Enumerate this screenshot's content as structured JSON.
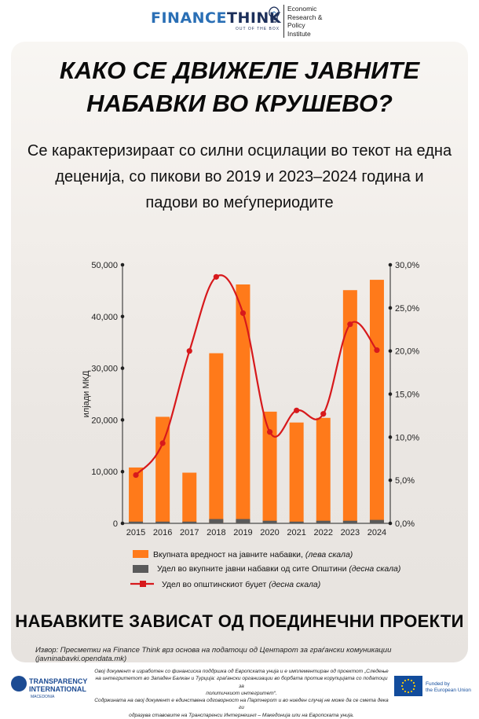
{
  "header": {
    "brand_main": "FINANCE",
    "brand_accent": "THINK",
    "brand_tagline": "OUT OF THE BOX",
    "institute_lines": [
      "Economic",
      "Research &",
      "Policy",
      "Institute"
    ]
  },
  "title_lines": [
    "КАКО СЕ ДВИЖЕЛЕ ЈАВНИТЕ",
    "НАБАВКИ ВО КРУШЕВО?"
  ],
  "subtitle_lines": [
    "Се карактеризираат со силни осцилации во текот на една",
    "деценија, со пикови во 2019 и 2023–2024 година и",
    "падови во меѓупериодите"
  ],
  "colors": {
    "orange": "#ff7a1a",
    "gray": "#5a5a5a",
    "red": "#d7191c",
    "brand_blue": "#2a6fb5"
  },
  "chart_data": {
    "type": "bar",
    "categories": [
      "2015",
      "2016",
      "2017",
      "2018",
      "2019",
      "2020",
      "2021",
      "2022",
      "2023",
      "2024"
    ],
    "series": [
      {
        "name": "Вкупната вредност на јавните набавки, (лева скала)",
        "type": "bar",
        "axis": "left",
        "values": [
          10800,
          20600,
          9800,
          32900,
          46200,
          21600,
          19500,
          20400,
          45100,
          47100
        ]
      },
      {
        "name": "Удел во вкупните јавни набавки од сите Општини (десна скала)",
        "type": "bar",
        "axis": "right",
        "values": [
          0.2,
          0.2,
          0.2,
          0.5,
          0.5,
          0.3,
          0.2,
          0.3,
          0.3,
          0.4
        ]
      },
      {
        "name": "Удел во општинскиот буџет (десна скала)",
        "type": "line",
        "axis": "right",
        "values": [
          5.6,
          9.3,
          20.0,
          28.6,
          24.4,
          10.6,
          13.1,
          12.7,
          23.1,
          20.1
        ]
      }
    ],
    "left_axis": {
      "label": "илјади МКД",
      "ticks": [
        "0",
        "10,000",
        "20,000",
        "30,000",
        "40,000",
        "50,000"
      ],
      "range": [
        0,
        50000
      ]
    },
    "right_axis": {
      "ticks": [
        "0,0%",
        "5,0%",
        "10,0%",
        "15,0%",
        "20,0%",
        "25,0%",
        "30,0%"
      ],
      "range": [
        0,
        30
      ]
    },
    "legend_placement": "bottom",
    "legend": [
      {
        "text": "Вкупната вредност на јавните набавки, ",
        "italic": "(лева скала)"
      },
      {
        "text": "Удел во вкупните јавни набавки од сите Општини ",
        "italic": "(десна скала)"
      },
      {
        "text": "Удел во општинскиот буџет ",
        "italic": "(десна скала)"
      }
    ]
  },
  "bottom_heading": "НАБАВКИТЕ ЗАВИСАТ ОД ПОЕДИНЕЧНИ ПРОЕКТИ",
  "source_text": "Извор: Пресметки на Finance Think врз основа на податоци од Центарот за граѓански комуникации (javninabavki.opendata.mk)",
  "footer": {
    "ti_lines": [
      "TRANSPARENCY",
      "INTERNATIONAL",
      "MACEDONIA"
    ],
    "note_lines": [
      "Овој документ е изработен со финансиска поддршка од Европската унија и е имплементиран од проектот „Следење",
      "на интегритетот во Западен Балкан и Турција: граѓански организации во борбата против корупцијата со податоци за",
      "политичкиот интегритет“.",
      "Содржината на овој документ е единствена одговорност на Партнерот и во ниеден случај не може да се смета дека ги",
      "одразува ставовите на Транспаренси Интернешнл – Македонија или на Европската унија."
    ],
    "eu_lines": [
      "Funded by",
      "the European Union"
    ]
  }
}
